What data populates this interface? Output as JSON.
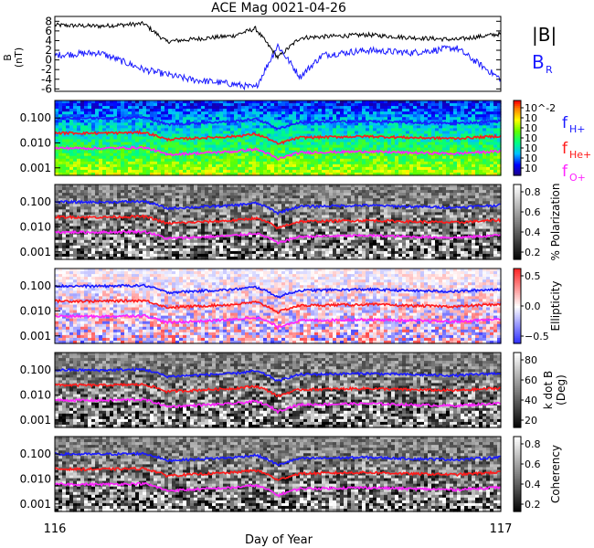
{
  "chart_data": {
    "title": "ACE Mag 0021-04-26",
    "type": "line",
    "x_axis": {
      "label": "Day of Year",
      "range": [
        116,
        117
      ],
      "ticks": [
        "116",
        "117"
      ]
    },
    "freq_ticks": [
      "0.100",
      "0.010",
      "0.001"
    ],
    "freq_ticks_values": [
      0.1,
      0.01,
      0.001
    ],
    "freq_range": [
      0.0005,
      0.5
    ],
    "scale": "log",
    "panels": [
      {
        "type": "line",
        "ylabel_top": "B",
        "ylabel_bottom": "(nT)",
        "ylim": [
          -6.5,
          9
        ],
        "yticks": [
          "8",
          "6",
          "4",
          "2",
          "0",
          "-2",
          "-4",
          "-6"
        ],
        "yticks_values": [
          8,
          6,
          4,
          2,
          0,
          -2,
          -4,
          -6
        ],
        "series": [
          {
            "name": "|B|",
            "color": "#000000",
            "x": [
              116.0,
              116.1,
              116.2,
              116.25,
              116.3,
              116.4,
              116.45,
              116.5,
              116.55,
              116.6,
              116.7,
              116.8,
              116.9,
              117.0
            ],
            "y": [
              7.2,
              7.0,
              7.5,
              3.8,
              4.2,
              5.0,
              6.5,
              0.5,
              4.6,
              4.8,
              5.2,
              4.6,
              4.2,
              5.4
            ]
          },
          {
            "name": "B",
            "subscript": "R",
            "color": "#1a1aff",
            "x": [
              116.0,
              116.1,
              116.2,
              116.25,
              116.3,
              116.4,
              116.45,
              116.5,
              116.55,
              116.6,
              116.7,
              116.8,
              116.9,
              117.0
            ],
            "y": [
              1.0,
              1.5,
              -2.0,
              -3.0,
              -4.0,
              -5.0,
              -5.8,
              3.0,
              -3.5,
              1.0,
              2.0,
              1.5,
              2.5,
              -4.0
            ]
          }
        ]
      },
      {
        "type": "heatmap",
        "colormap": "rainbow",
        "colorbar_ticks": [
          "10^-2",
          "10",
          "10",
          "10",
          "10",
          "10",
          "10"
        ]
      },
      {
        "type": "heatmap",
        "colormap": "gray",
        "colorbar_label": "% Polarization",
        "colorbar_ticks": [
          "0.8",
          "0.6",
          "0.4",
          "0.2"
        ]
      },
      {
        "type": "heatmap",
        "colormap": "bwr",
        "colorbar_label": "Ellipticity",
        "colorbar_ticks": [
          "0.5",
          "0.0",
          "−0.5"
        ]
      },
      {
        "type": "heatmap",
        "colormap": "gray",
        "colorbar_label_top": "k dot B",
        "colorbar_label_bottom": "(Deg)",
        "colorbar_ticks": [
          "80",
          "60",
          "40",
          "20"
        ]
      },
      {
        "type": "heatmap",
        "colormap": "gray",
        "colorbar_label": "Coherency",
        "colorbar_ticks": [
          "0.8",
          "0.6",
          "0.4",
          "0.2"
        ]
      }
    ],
    "gyro_lines": [
      {
        "name": "f",
        "subscript": "H+",
        "color": "#1a1aff",
        "values_at_116": 0.1
      },
      {
        "name": "f",
        "subscript": "He+",
        "color": "#ff1a1a",
        "values_at_116": 0.025
      },
      {
        "name": "f",
        "subscript": "O+",
        "color": "#ff22ff",
        "values_at_116": 0.0062
      }
    ],
    "gyro_profile": {
      "x": [
        116.0,
        116.1,
        116.2,
        116.25,
        116.3,
        116.4,
        116.45,
        116.5,
        116.55,
        116.6,
        116.7,
        116.8,
        116.9,
        117.0
      ],
      "scale": [
        1.0,
        0.98,
        1.05,
        0.55,
        0.6,
        0.72,
        0.9,
        0.35,
        0.66,
        0.68,
        0.73,
        0.65,
        0.6,
        0.75
      ]
    }
  }
}
